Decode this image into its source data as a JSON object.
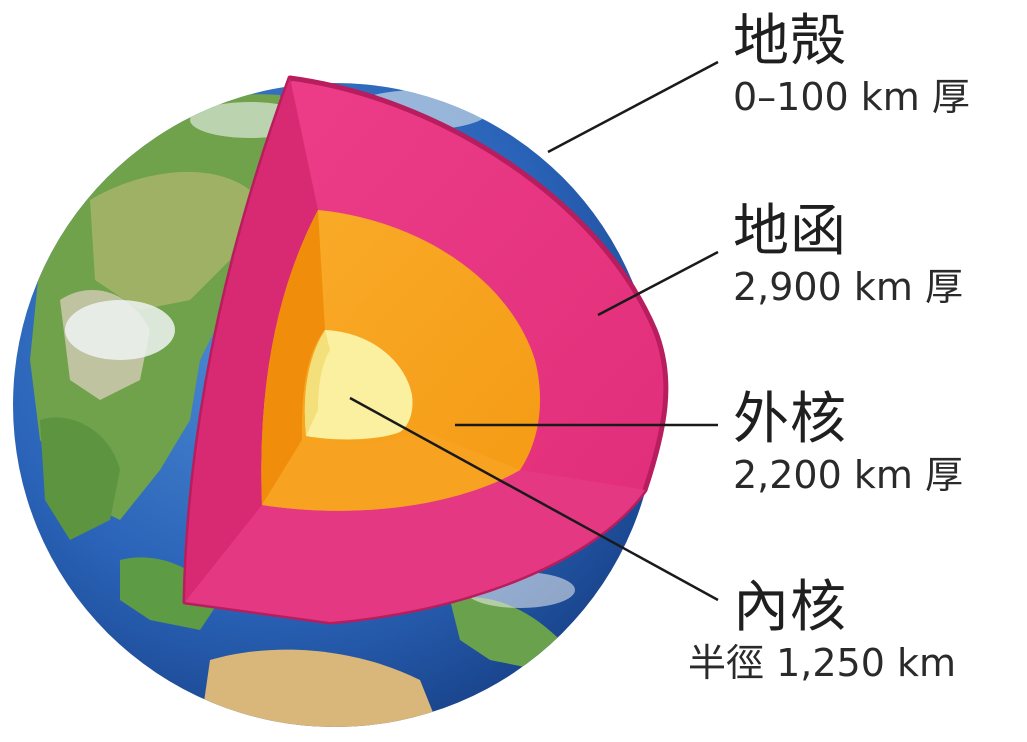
{
  "layers": [
    {
      "id": "crust",
      "name": "地殻",
      "detail": "0–100 km 厚"
    },
    {
      "id": "mantle",
      "name": "地函",
      "detail": "2,900 km 厚"
    },
    {
      "id": "outer",
      "name": "外核",
      "detail": "2,200 km 厚"
    },
    {
      "id": "inner",
      "name": "內核",
      "detail": "半徑 1,250 km"
    }
  ],
  "colors": {
    "mantle": "#e8317f",
    "mantle_edge": "#b81d5e",
    "outer_core": "#f7a21b",
    "inner_core": "#fbf0a0",
    "ocean": "#2a63b8",
    "land": "#6fa24a",
    "ice": "#eef3f2",
    "leader_line": "#1a1a1a"
  }
}
